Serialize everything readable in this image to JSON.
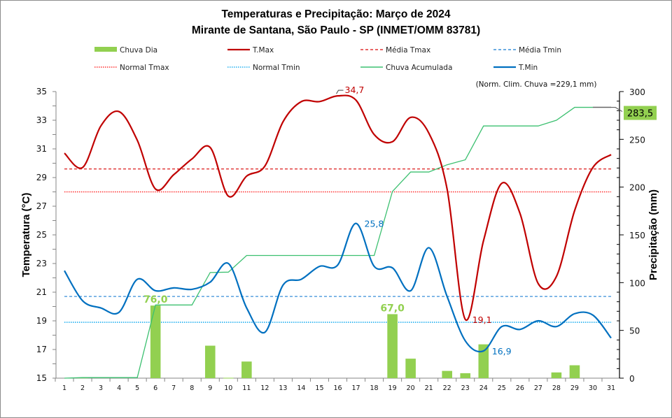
{
  "chart_data": {
    "type": "bar+line",
    "title": "Temperaturas e Precipitação: Março de 2024",
    "subtitle": "Mirante de Santana, São Paulo - SP (INMET/OMM 83781)",
    "ylabel_left": "Temperatura (°C)",
    "ylabel_right": "Precipitação (mm)",
    "ylim_left": [
      15,
      35
    ],
    "ylim_right": [
      0,
      300
    ],
    "yticks_left": [
      "15",
      "17",
      "19",
      "21",
      "23",
      "25",
      "27",
      "29",
      "31",
      "33",
      "35"
    ],
    "yticks_right": [
      "0",
      "50",
      "100",
      "150",
      "200",
      "250",
      "300"
    ],
    "categories": [
      "1",
      "2",
      "3",
      "4",
      "5",
      "6",
      "7",
      "8",
      "9",
      "10",
      "11",
      "12",
      "13",
      "14",
      "15",
      "16",
      "17",
      "18",
      "19",
      "20",
      "21",
      "22",
      "23",
      "24",
      "25",
      "26",
      "27",
      "28",
      "29",
      "30",
      "31"
    ],
    "legend": [
      {
        "label": "Chuva Dia",
        "style": "bar",
        "color": "#92d050"
      },
      {
        "label": "T.Max",
        "style": "solid",
        "color": "#c00000"
      },
      {
        "label": "Média Tmax",
        "style": "dashed",
        "color": "#e03030"
      },
      {
        "label": "Média Tmin",
        "style": "dashed",
        "color": "#3a8fd8"
      },
      {
        "label": "Normal Tmax",
        "style": "dotted",
        "color": "#ff3030"
      },
      {
        "label": "Normal Tmin",
        "style": "dotted",
        "color": "#22b0f0"
      },
      {
        "label": "Chuva Acumulada",
        "style": "solid-thin",
        "color": "#3cc070"
      },
      {
        "label": "T.Min",
        "style": "solid",
        "color": "#0070c0"
      }
    ],
    "series": {
      "chuva_dia": [
        0,
        0.6,
        0,
        0,
        0,
        76.0,
        0,
        0,
        34.0,
        0.4,
        17.4,
        0,
        0,
        0,
        0,
        0,
        0,
        0,
        67.0,
        20.4,
        0,
        7.6,
        5.2,
        35.4,
        0,
        0,
        0,
        6.0,
        13.5,
        0,
        0
      ],
      "tmax": [
        30.7,
        29.7,
        32.6,
        33.6,
        31.6,
        28.2,
        29.2,
        30.3,
        31.1,
        27.7,
        29.1,
        29.8,
        32.9,
        34.3,
        34.3,
        34.7,
        34.4,
        32.0,
        31.5,
        33.2,
        32.1,
        28.2,
        19.1,
        24.6,
        28.6,
        26.5,
        21.6,
        22.1,
        26.7,
        29.7,
        30.6
      ],
      "tmin": [
        22.5,
        20.4,
        19.9,
        19.6,
        21.9,
        21.1,
        21.3,
        21.2,
        21.7,
        23.0,
        19.9,
        18.2,
        21.5,
        21.9,
        22.8,
        22.9,
        25.8,
        22.8,
        22.7,
        21.1,
        24.1,
        20.7,
        17.6,
        16.9,
        18.6,
        18.4,
        19.0,
        18.6,
        19.5,
        19.4,
        17.8
      ],
      "media_tmax": 29.6,
      "media_tmin": 20.7,
      "normal_tmax": 28.0,
      "normal_tmin": 18.9
    },
    "annotations": {
      "max_tmax": {
        "day": 16,
        "label": "34,7"
      },
      "min_tmax": {
        "day": 23,
        "label": "19,1"
      },
      "max_tmin": {
        "day": 17,
        "label": "25,8"
      },
      "min_tmin": {
        "day": 24,
        "label": "16,9"
      },
      "rain_labels": [
        {
          "day": 6,
          "label": "76,0"
        },
        {
          "day": 19,
          "label": "67,0"
        }
      ],
      "total_rain": "283,5",
      "normal_rain_note": "(Norm. Clim. Chuva =229,1 mm)"
    },
    "colors": {
      "bar": "#92d050",
      "tmax": "#c00000",
      "tmin": "#0070c0",
      "media_tmax": "#e03030",
      "media_tmin": "#3a8fd8",
      "normal_tmax": "#ff3030",
      "normal_tmin": "#22b0f0",
      "accum": "#3cc070",
      "total_box": "#92d050"
    }
  }
}
